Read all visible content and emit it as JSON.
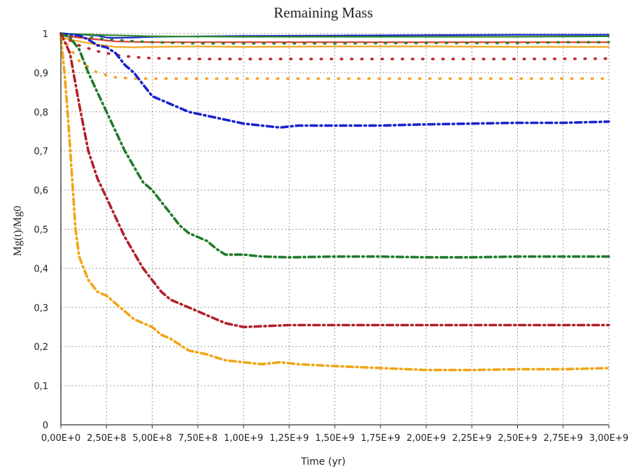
{
  "chart_data": {
    "type": "line",
    "title": "Remaining Mass",
    "xlabel": "Time (yr)",
    "ylabel": "Mg(t)/Mg0",
    "xlim": [
      0,
      3000000000
    ],
    "ylim": [
      0,
      1
    ],
    "grid": true,
    "legend": "none",
    "x_ticks": [
      {
        "value": 0,
        "label": "0,00E+0"
      },
      {
        "value": 250000000,
        "label": "2,50E+8"
      },
      {
        "value": 500000000,
        "label": "5,00E+8"
      },
      {
        "value": 750000000,
        "label": "7,50E+8"
      },
      {
        "value": 1000000000,
        "label": "1,00E+9"
      },
      {
        "value": 1250000000,
        "label": "1,25E+9"
      },
      {
        "value": 1500000000,
        "label": "1,50E+9"
      },
      {
        "value": 1750000000,
        "label": "1,75E+9"
      },
      {
        "value": 2000000000,
        "label": "2,00E+9"
      },
      {
        "value": 2250000000,
        "label": "2,25E+9"
      },
      {
        "value": 2500000000,
        "label": "2,50E+9"
      },
      {
        "value": 2750000000,
        "label": "2,75E+9"
      },
      {
        "value": 3000000000,
        "label": "3,00E+9"
      }
    ],
    "y_ticks": [
      {
        "value": 0,
        "label": "0"
      },
      {
        "value": 0.1,
        "label": "0,1"
      },
      {
        "value": 0.2,
        "label": "0,2"
      },
      {
        "value": 0.3,
        "label": "0,3"
      },
      {
        "value": 0.4,
        "label": "0,4"
      },
      {
        "value": 0.5,
        "label": "0,5"
      },
      {
        "value": 0.6,
        "label": "0,6"
      },
      {
        "value": 0.7,
        "label": "0,7"
      },
      {
        "value": 0.8,
        "label": "0,8"
      },
      {
        "value": 0.9,
        "label": "0,9"
      },
      {
        "value": 1,
        "label": "1"
      }
    ],
    "series": [
      {
        "color": "#1a22cc",
        "style": "solid",
        "x": [
          0,
          100000000,
          200000000,
          250000000,
          300000000,
          400000000,
          500000000,
          1000000000,
          1500000000,
          2000000000,
          2500000000,
          3000000000
        ],
        "y": [
          1.0,
          0.998,
          0.995,
          0.99,
          0.989,
          0.99,
          0.992,
          0.994,
          0.995,
          0.996,
          0.997,
          0.997
        ]
      },
      {
        "color": "#2a8a2a",
        "style": "solid",
        "x": [
          0,
          250000000,
          500000000,
          1000000000,
          1500000000,
          2000000000,
          2500000000,
          3000000000
        ],
        "y": [
          1.0,
          0.996,
          0.993,
          0.992,
          0.992,
          0.992,
          0.992,
          0.993
        ]
      },
      {
        "color": "#e23232",
        "style": "solid",
        "x": [
          0,
          100000000,
          200000000,
          300000000,
          500000000,
          750000000,
          1000000000,
          1500000000,
          2000000000,
          2500000000,
          3000000000
        ],
        "y": [
          0.995,
          0.99,
          0.985,
          0.98,
          0.978,
          0.978,
          0.978,
          0.978,
          0.978,
          0.978,
          0.978
        ]
      },
      {
        "color": "#f5a623",
        "style": "solid",
        "x": [
          0,
          100000000,
          200000000,
          300000000,
          400000000,
          500000000,
          750000000,
          1000000000,
          1500000000,
          2000000000,
          2500000000,
          3000000000
        ],
        "y": [
          0.99,
          0.98,
          0.972,
          0.966,
          0.965,
          0.966,
          0.967,
          0.966,
          0.967,
          0.967,
          0.966,
          0.966
        ]
      },
      {
        "color": "#2a8a2a",
        "style": "dotted",
        "x": [
          0,
          250000000,
          500000000,
          750000000,
          1000000000,
          1500000000,
          2000000000,
          2500000000,
          2750000000,
          3000000000
        ],
        "y": [
          1.0,
          0.985,
          0.978,
          0.975,
          0.975,
          0.975,
          0.976,
          0.976,
          0.978,
          0.978
        ]
      },
      {
        "color": "#c02a2a",
        "style": "dotted",
        "x": [
          0,
          100000000,
          200000000,
          300000000,
          400000000,
          500000000,
          750000000,
          1000000000,
          1500000000,
          2000000000,
          2500000000,
          3000000000
        ],
        "y": [
          0.995,
          0.97,
          0.955,
          0.945,
          0.94,
          0.937,
          0.935,
          0.935,
          0.935,
          0.935,
          0.935,
          0.936
        ]
      },
      {
        "color": "#f5a623",
        "style": "dotted",
        "x": [
          0,
          100000000,
          200000000,
          300000000,
          400000000,
          500000000,
          750000000,
          1000000000,
          1500000000,
          2000000000,
          2500000000,
          3000000000
        ],
        "y": [
          0.995,
          0.93,
          0.9,
          0.888,
          0.885,
          0.885,
          0.885,
          0.885,
          0.885,
          0.885,
          0.885,
          0.885
        ]
      },
      {
        "color": "#1a22cc",
        "style": "dashdot",
        "x": [
          0,
          50000000,
          100000000,
          150000000,
          200000000,
          250000000,
          300000000,
          350000000,
          400000000,
          450000000,
          500000000,
          600000000,
          700000000,
          800000000,
          900000000,
          1000000000,
          1100000000,
          1200000000,
          1300000000,
          1500000000,
          1750000000,
          2000000000,
          2250000000,
          2500000000,
          2750000000,
          3000000000
        ],
        "y": [
          1.0,
          0.998,
          0.995,
          0.985,
          0.97,
          0.965,
          0.95,
          0.92,
          0.9,
          0.87,
          0.84,
          0.82,
          0.8,
          0.79,
          0.78,
          0.77,
          0.765,
          0.76,
          0.765,
          0.765,
          0.765,
          0.768,
          0.77,
          0.772,
          0.772,
          0.775
        ]
      },
      {
        "color": "#1f7a2a",
        "style": "dashdot",
        "x": [
          0,
          50000000,
          100000000,
          150000000,
          200000000,
          250000000,
          300000000,
          350000000,
          400000000,
          450000000,
          500000000,
          550000000,
          600000000,
          650000000,
          700000000,
          750000000,
          800000000,
          850000000,
          900000000,
          1000000000,
          1100000000,
          1250000000,
          1500000000,
          1750000000,
          2000000000,
          2250000000,
          2500000000,
          2750000000,
          3000000000
        ],
        "y": [
          1.0,
          0.99,
          0.96,
          0.9,
          0.85,
          0.8,
          0.75,
          0.7,
          0.66,
          0.62,
          0.6,
          0.57,
          0.54,
          0.51,
          0.49,
          0.48,
          0.47,
          0.45,
          0.435,
          0.435,
          0.43,
          0.428,
          0.43,
          0.43,
          0.428,
          0.428,
          0.43,
          0.43,
          0.43
        ]
      },
      {
        "color": "#b0202a",
        "style": "dashdot",
        "x": [
          0,
          50000000,
          100000000,
          150000000,
          200000000,
          250000000,
          300000000,
          350000000,
          400000000,
          450000000,
          500000000,
          550000000,
          600000000,
          650000000,
          700000000,
          750000000,
          800000000,
          850000000,
          900000000,
          1000000000,
          1250000000,
          1500000000,
          1750000000,
          2000000000,
          2250000000,
          2500000000,
          2750000000,
          3000000000
        ],
        "y": [
          1.0,
          0.95,
          0.82,
          0.7,
          0.63,
          0.58,
          0.53,
          0.48,
          0.44,
          0.4,
          0.37,
          0.34,
          0.32,
          0.31,
          0.3,
          0.29,
          0.28,
          0.27,
          0.26,
          0.25,
          0.255,
          0.255,
          0.255,
          0.255,
          0.255,
          0.255,
          0.255,
          0.255
        ]
      },
      {
        "color": "#f0a516",
        "style": "dashdot",
        "x": [
          0,
          20000000,
          40000000,
          60000000,
          80000000,
          100000000,
          125000000,
          150000000,
          200000000,
          250000000,
          300000000,
          350000000,
          400000000,
          450000000,
          500000000,
          550000000,
          600000000,
          700000000,
          800000000,
          900000000,
          1000000000,
          1100000000,
          1200000000,
          1300000000,
          1500000000,
          1750000000,
          2000000000,
          2250000000,
          2500000000,
          2750000000,
          3000000000
        ],
        "y": [
          0.99,
          0.9,
          0.78,
          0.64,
          0.5,
          0.43,
          0.4,
          0.37,
          0.34,
          0.33,
          0.31,
          0.29,
          0.27,
          0.26,
          0.25,
          0.23,
          0.22,
          0.19,
          0.18,
          0.165,
          0.16,
          0.155,
          0.16,
          0.155,
          0.15,
          0.145,
          0.14,
          0.14,
          0.142,
          0.142,
          0.145
        ]
      }
    ]
  }
}
